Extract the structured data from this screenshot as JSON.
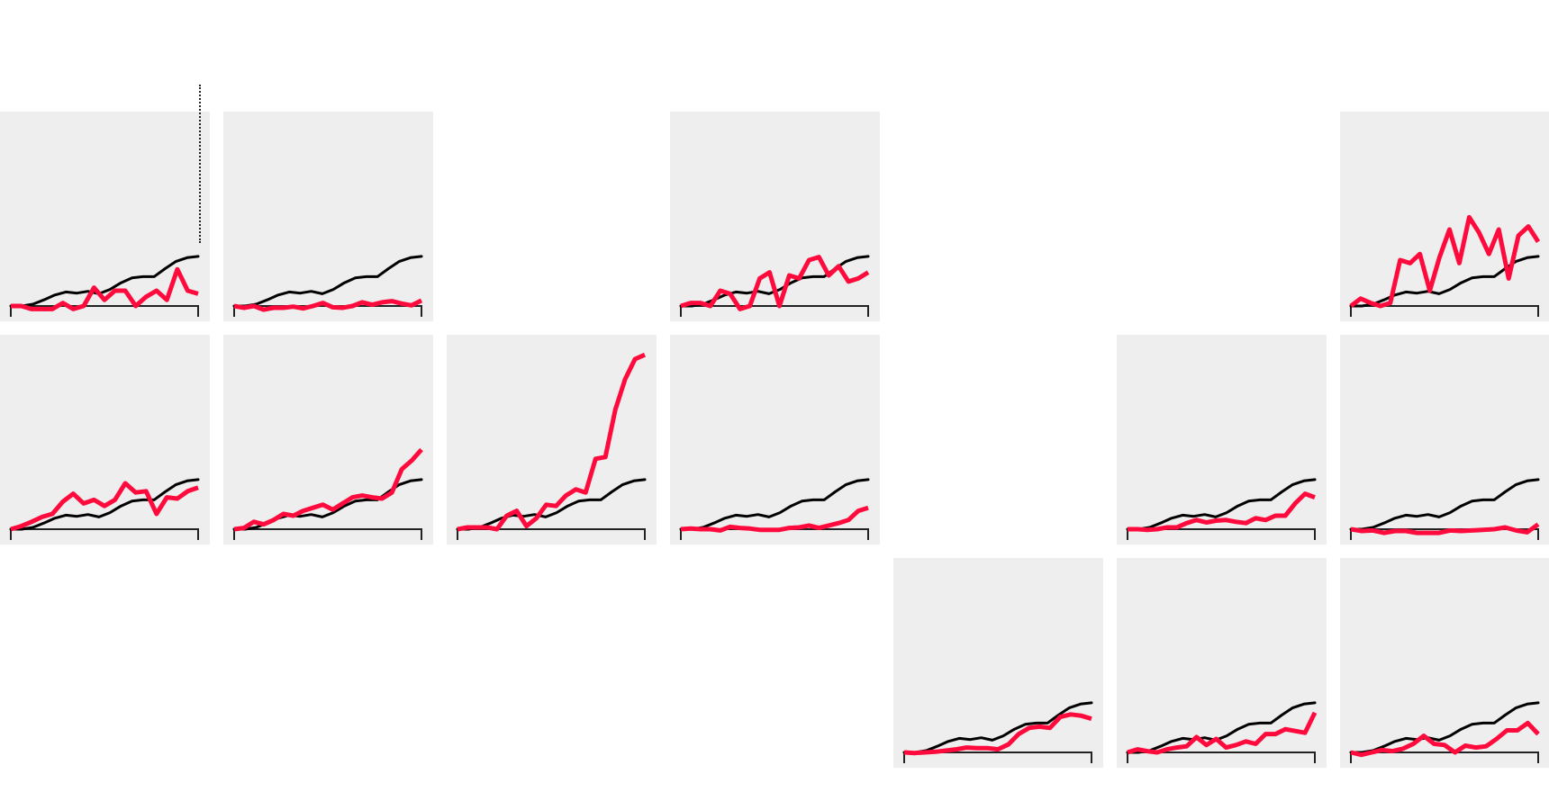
{
  "colors": {
    "panel_bg": "#eeeeee",
    "reference_line": "#000000",
    "highlight_line": "#ff0a3c"
  },
  "chart_data": {
    "type": "line",
    "grid": false,
    "legend": "none",
    "reference": [
      0.0,
      0.0,
      0.03,
      0.1,
      0.18,
      0.23,
      0.21,
      0.24,
      0.2,
      0.27,
      0.38,
      0.46,
      0.48,
      0.48,
      0.61,
      0.73,
      0.79,
      0.81
    ],
    "panels": [
      {
        "row": 0,
        "col": 0,
        "values": [
          0.0,
          0.0,
          -0.05,
          -0.05,
          -0.05,
          0.05,
          -0.05,
          0.0,
          0.3,
          0.1,
          0.25,
          0.25,
          0.0,
          0.15,
          0.25,
          0.1,
          0.6,
          0.25,
          0.2
        ]
      },
      {
        "row": 0,
        "col": 1,
        "values": [
          0.0,
          -0.03,
          0.0,
          -0.06,
          -0.03,
          -0.03,
          -0.01,
          -0.04,
          0.0,
          0.05,
          -0.02,
          -0.03,
          0.0,
          0.06,
          0.02,
          0.06,
          0.08,
          0.04,
          0.01,
          0.09
        ]
      },
      {
        "row": 0,
        "col": 3,
        "values": [
          0.0,
          0.05,
          0.05,
          0.0,
          0.25,
          0.2,
          -0.05,
          0.0,
          0.45,
          0.55,
          0.0,
          0.5,
          0.45,
          0.75,
          0.8,
          0.5,
          0.65,
          0.4,
          0.45,
          0.55
        ]
      },
      {
        "row": 0,
        "col": 6,
        "values": [
          0.0,
          0.12,
          0.05,
          0.0,
          0.05,
          0.75,
          0.7,
          0.85,
          0.25,
          0.8,
          1.25,
          0.7,
          1.45,
          1.2,
          0.85,
          1.25,
          0.45,
          1.15,
          1.3,
          1.05
        ]
      },
      {
        "row": 1,
        "col": 0,
        "values": [
          0.0,
          0.05,
          0.12,
          0.2,
          0.25,
          0.45,
          0.58,
          0.42,
          0.48,
          0.38,
          0.48,
          0.75,
          0.6,
          0.62,
          0.25,
          0.52,
          0.5,
          0.62,
          0.68
        ]
      },
      {
        "row": 1,
        "col": 1,
        "values": [
          0.0,
          0.02,
          0.12,
          0.08,
          0.15,
          0.25,
          0.22,
          0.3,
          0.35,
          0.4,
          0.32,
          0.42,
          0.52,
          0.55,
          0.52,
          0.5,
          0.6,
          0.98,
          1.12,
          1.3
        ]
      },
      {
        "row": 1,
        "col": 2,
        "values": [
          0.0,
          0.03,
          0.03,
          0.03,
          0.0,
          0.22,
          0.3,
          0.05,
          0.18,
          0.4,
          0.38,
          0.55,
          0.65,
          0.6,
          1.15,
          1.18,
          1.95,
          2.45,
          2.78,
          2.85
        ]
      },
      {
        "row": 1,
        "col": 3,
        "values": [
          0.0,
          0.01,
          0.0,
          0.0,
          -0.02,
          0.04,
          0.02,
          0.01,
          -0.01,
          -0.01,
          -0.01,
          0.02,
          0.03,
          0.06,
          0.02,
          0.06,
          0.1,
          0.15,
          0.3,
          0.35
        ]
      },
      {
        "row": 1,
        "col": 5,
        "values": [
          0.0,
          0.0,
          -0.01,
          0.0,
          0.03,
          0.03,
          0.1,
          0.15,
          0.11,
          0.14,
          0.15,
          0.12,
          0.1,
          0.18,
          0.15,
          0.22,
          0.22,
          0.42,
          0.58,
          0.52
        ]
      },
      {
        "row": 1,
        "col": 6,
        "values": [
          0.0,
          -0.03,
          -0.02,
          -0.06,
          -0.03,
          -0.03,
          -0.06,
          -0.06,
          -0.06,
          -0.02,
          -0.03,
          -0.02,
          -0.01,
          0.0,
          0.03,
          -0.02,
          -0.05,
          0.08
        ]
      },
      {
        "row": 2,
        "col": 4,
        "values": [
          0.0,
          -0.01,
          0.0,
          0.01,
          0.03,
          0.05,
          0.08,
          0.07,
          0.07,
          0.05,
          0.13,
          0.3,
          0.4,
          0.42,
          0.4,
          0.58,
          0.62,
          0.6,
          0.55
        ]
      },
      {
        "row": 2,
        "col": 5,
        "values": [
          0.0,
          0.05,
          0.02,
          0.0,
          0.05,
          0.08,
          0.1,
          0.25,
          0.12,
          0.22,
          0.08,
          0.12,
          0.18,
          0.14,
          0.3,
          0.3,
          0.38,
          0.35,
          0.32,
          0.65
        ]
      },
      {
        "row": 2,
        "col": 6,
        "values": [
          0.0,
          -0.04,
          0.0,
          0.04,
          0.02,
          0.06,
          0.14,
          0.27,
          0.14,
          0.12,
          0.0,
          0.11,
          0.08,
          0.1,
          0.22,
          0.36,
          0.36,
          0.48,
          0.3
        ]
      }
    ]
  }
}
